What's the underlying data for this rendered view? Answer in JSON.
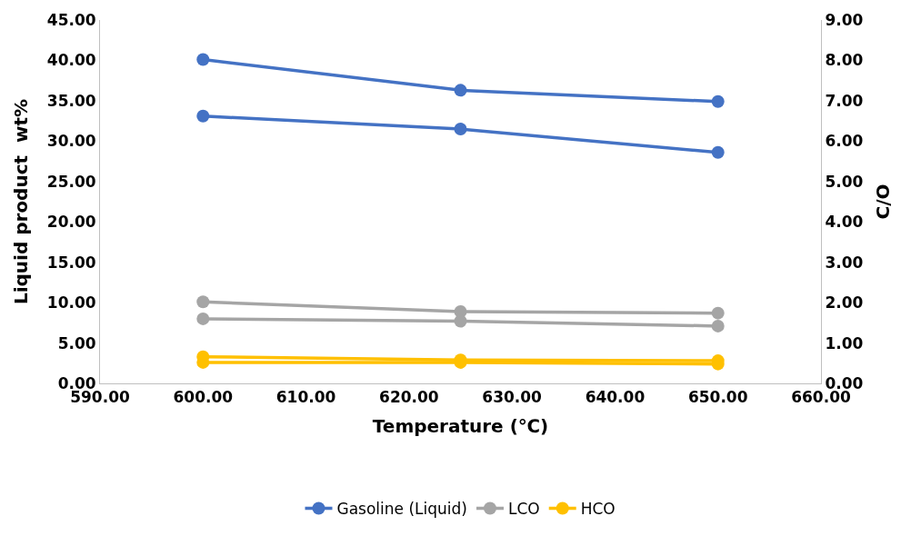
{
  "chart_data": {
    "type": "line",
    "xlabel": "Temperature (℃)",
    "ylabel": "Liquid product  wt%",
    "y2label": "C/O",
    "xlim": [
      590,
      660
    ],
    "xticks": [
      {
        "value": 590,
        "label": "590.00"
      },
      {
        "value": 600,
        "label": "600.00"
      },
      {
        "value": 610,
        "label": "610.00"
      },
      {
        "value": 620,
        "label": "620.00"
      },
      {
        "value": 630,
        "label": "630.00"
      },
      {
        "value": 640,
        "label": "640.00"
      },
      {
        "value": 650,
        "label": "650.00"
      },
      {
        "value": 660,
        "label": "660.00"
      }
    ],
    "ylim": [
      0,
      45
    ],
    "yticks": [
      {
        "value": 0,
        "label": "0.00"
      },
      {
        "value": 5,
        "label": "5.00"
      },
      {
        "value": 10,
        "label": "10.00"
      },
      {
        "value": 15,
        "label": "15.00"
      },
      {
        "value": 20,
        "label": "20.00"
      },
      {
        "value": 25,
        "label": "25.00"
      },
      {
        "value": 30,
        "label": "30.00"
      },
      {
        "value": 35,
        "label": "35.00"
      },
      {
        "value": 40,
        "label": "40.00"
      },
      {
        "value": 45,
        "label": "45.00"
      }
    ],
    "y2lim": [
      0,
      9
    ],
    "y2ticks": [
      {
        "value": 0,
        "label": "0.00"
      },
      {
        "value": 1,
        "label": "1.00"
      },
      {
        "value": 2,
        "label": "2.00"
      },
      {
        "value": 3,
        "label": "3.00"
      },
      {
        "value": 4,
        "label": "4.00"
      },
      {
        "value": 5,
        "label": "5.00"
      },
      {
        "value": 6,
        "label": "6.00"
      },
      {
        "value": 7,
        "label": "7.00"
      },
      {
        "value": 8,
        "label": "8.00"
      },
      {
        "value": 9,
        "label": "9.00"
      }
    ],
    "x": [
      600,
      625,
      650
    ],
    "marker": "circle",
    "legend": "bottom",
    "series": [
      {
        "name": "Gasoline (Liquid)",
        "color": "#4472c4",
        "values": [
          40.1,
          36.3,
          34.9
        ]
      },
      {
        "name": "LCO",
        "color": "#a5a5a5",
        "values": [
          10.1,
          8.9,
          8.7
        ]
      },
      {
        "name": "HCO",
        "color": "#ffc000",
        "values": [
          3.3,
          2.9,
          2.8
        ]
      },
      {
        "color": "#4472c4",
        "axis": "y2",
        "values": [
          6.62,
          6.3,
          5.72
        ]
      },
      {
        "color": "#a5a5a5",
        "axis": "y2",
        "values": [
          1.6,
          1.54,
          1.42
        ]
      },
      {
        "color": "#ffc000",
        "axis": "y2",
        "values": [
          0.52,
          0.52,
          0.48
        ]
      }
    ]
  }
}
